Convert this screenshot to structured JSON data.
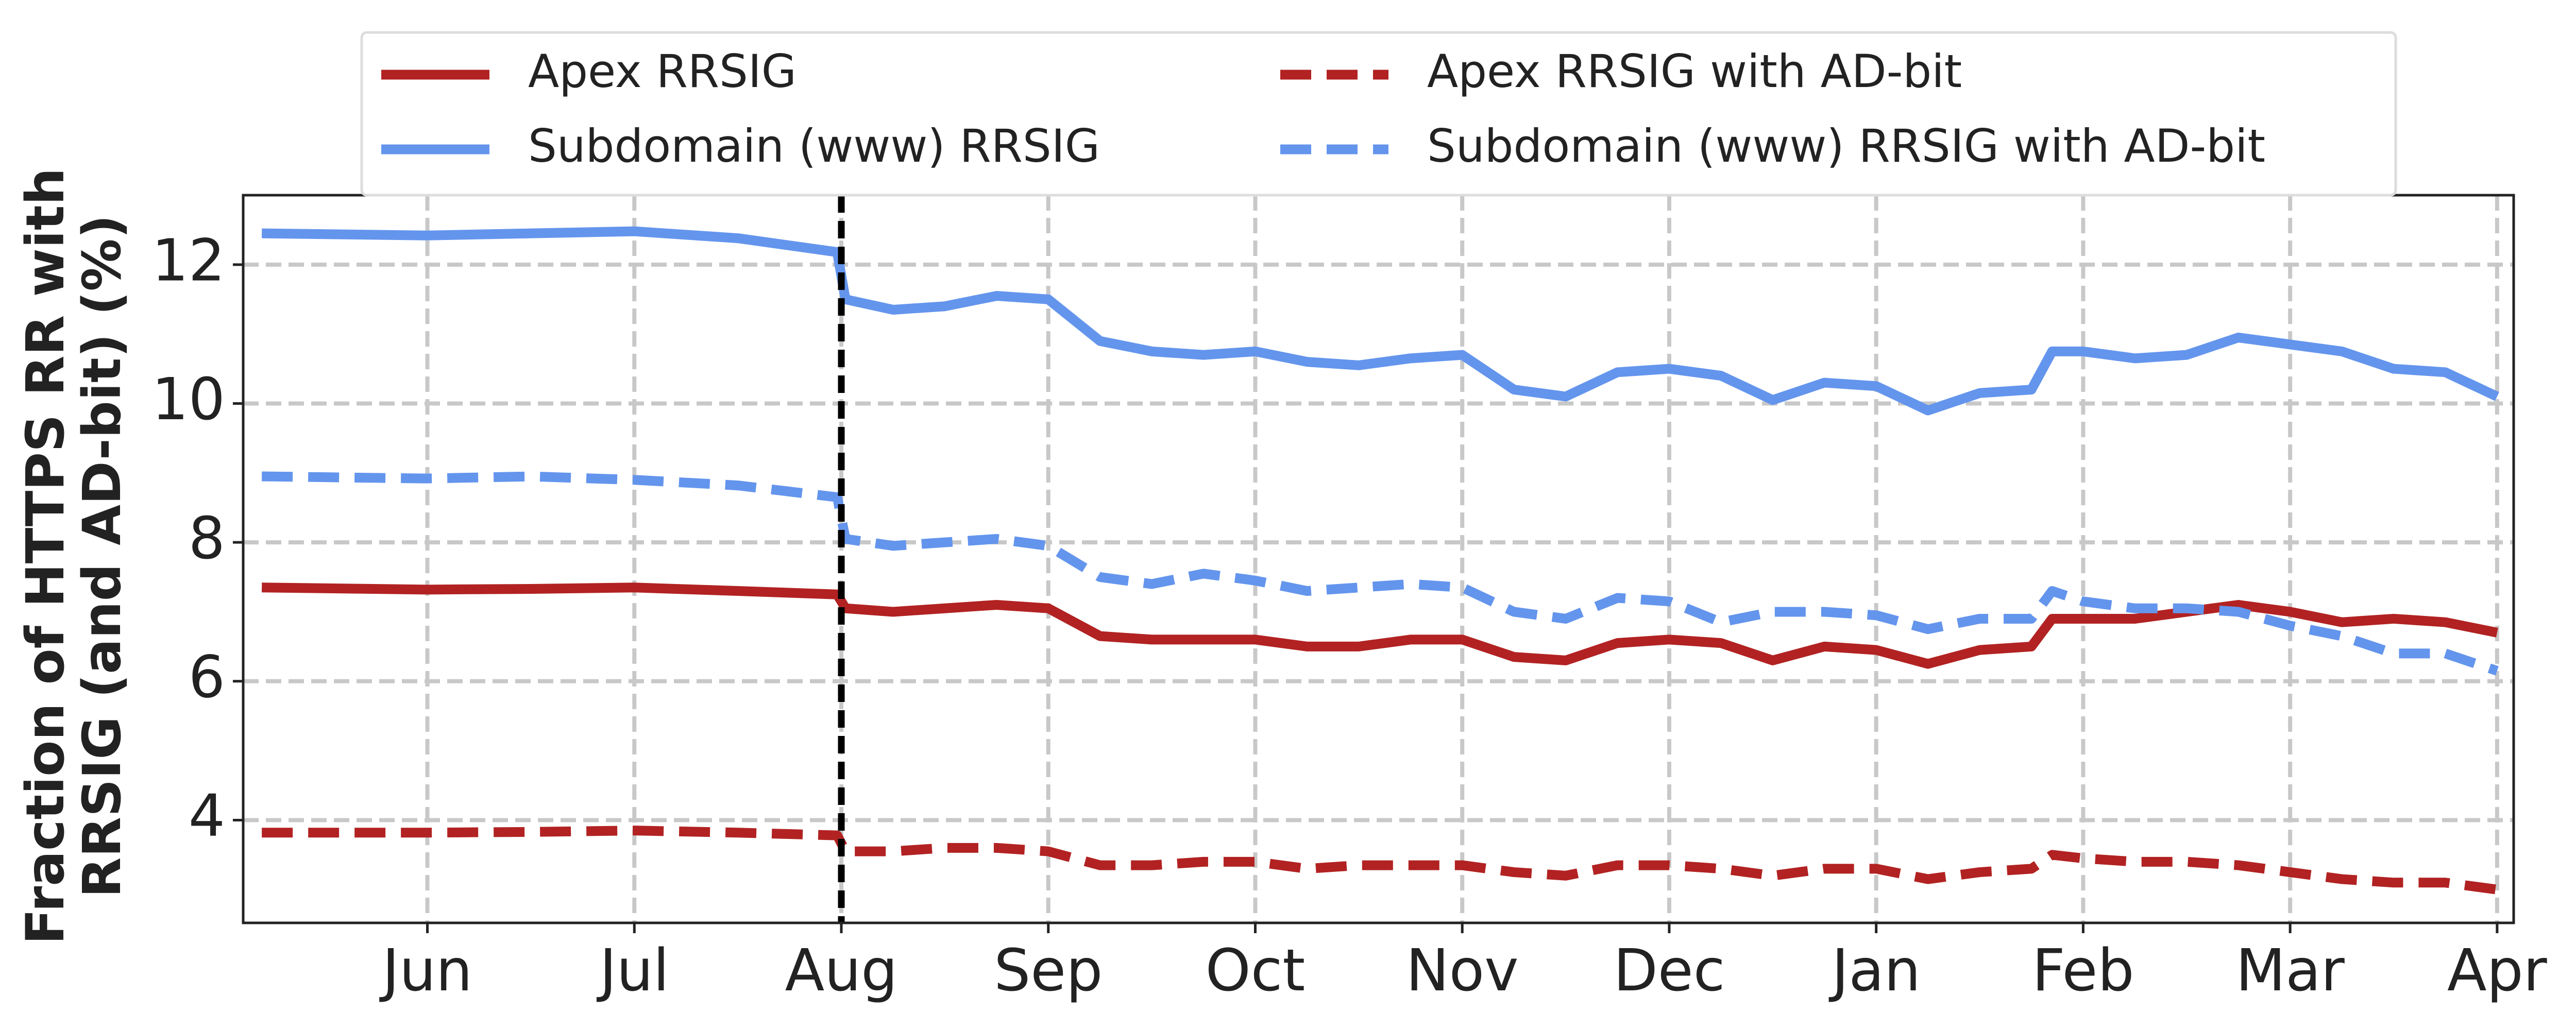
{
  "chart_data": {
    "type": "line",
    "ylabel": [
      "Fraction of HTTPS RR with",
      "RRSIG (and AD-bit) (%)"
    ],
    "x": [
      -0.8,
      0,
      0.5,
      1,
      1.5,
      1.98,
      2.02,
      2.25,
      2.5,
      2.75,
      3.0,
      3.25,
      3.5,
      3.75,
      4.0,
      4.25,
      4.5,
      4.75,
      5.0,
      5.25,
      5.5,
      5.75,
      6.0,
      6.25,
      6.5,
      6.75,
      7.0,
      7.25,
      7.5,
      7.75,
      7.85,
      8.0,
      8.25,
      8.5,
      8.75,
      9.0,
      9.25,
      9.5,
      9.75,
      10.0
    ],
    "series": [
      {
        "name": "Apex RRSIG",
        "color": "#b22222",
        "dashed": false,
        "values": [
          7.35,
          7.32,
          7.33,
          7.35,
          7.3,
          7.25,
          7.05,
          7.0,
          7.05,
          7.1,
          7.05,
          6.65,
          6.6,
          6.6,
          6.6,
          6.5,
          6.5,
          6.6,
          6.6,
          6.35,
          6.3,
          6.55,
          6.6,
          6.55,
          6.3,
          6.5,
          6.45,
          6.25,
          6.45,
          6.5,
          6.9,
          6.9,
          6.9,
          7.0,
          7.1,
          7.0,
          6.85,
          6.9,
          6.85,
          6.7
        ]
      },
      {
        "name": "Subdomain (www) RRSIG",
        "color": "#6495ed",
        "dashed": false,
        "values": [
          12.45,
          12.42,
          12.45,
          12.48,
          12.38,
          12.18,
          11.5,
          11.35,
          11.4,
          11.55,
          11.5,
          10.9,
          10.75,
          10.7,
          10.75,
          10.6,
          10.55,
          10.65,
          10.7,
          10.2,
          10.1,
          10.45,
          10.5,
          10.4,
          10.05,
          10.3,
          10.25,
          9.9,
          10.15,
          10.2,
          10.75,
          10.75,
          10.65,
          10.7,
          10.95,
          10.85,
          10.75,
          10.5,
          10.45,
          10.1
        ]
      },
      {
        "name": "Apex RRSIG with AD-bit",
        "color": "#b22222",
        "dashed": true,
        "values": [
          3.82,
          3.82,
          3.83,
          3.85,
          3.82,
          3.78,
          3.55,
          3.55,
          3.6,
          3.6,
          3.55,
          3.35,
          3.35,
          3.4,
          3.4,
          3.3,
          3.35,
          3.35,
          3.35,
          3.25,
          3.2,
          3.35,
          3.35,
          3.3,
          3.2,
          3.3,
          3.3,
          3.15,
          3.25,
          3.3,
          3.5,
          3.45,
          3.4,
          3.4,
          3.35,
          3.25,
          3.15,
          3.1,
          3.1,
          3.0
        ]
      },
      {
        "name": "Subdomain (www) RRSIG with AD-bit",
        "color": "#6495ed",
        "dashed": true,
        "values": [
          8.95,
          8.92,
          8.95,
          8.9,
          8.82,
          8.65,
          8.05,
          7.95,
          8.0,
          8.05,
          7.95,
          7.5,
          7.4,
          7.55,
          7.45,
          7.3,
          7.35,
          7.4,
          7.35,
          7.0,
          6.9,
          7.2,
          7.15,
          6.85,
          7.0,
          7.0,
          6.95,
          6.75,
          6.9,
          6.9,
          7.3,
          7.15,
          7.05,
          7.05,
          7.0,
          6.8,
          6.65,
          6.4,
          6.4,
          6.15
        ]
      }
    ],
    "xlim": [
      -0.89,
      10.08
    ],
    "xticks": [
      {
        "value": 0,
        "label": "Jun"
      },
      {
        "value": 1,
        "label": "Jul"
      },
      {
        "value": 2,
        "label": "Aug"
      },
      {
        "value": 3,
        "label": "Sep"
      },
      {
        "value": 4,
        "label": "Oct"
      },
      {
        "value": 5,
        "label": "Nov"
      },
      {
        "value": 6,
        "label": "Dec"
      },
      {
        "value": 7,
        "label": "Jan"
      },
      {
        "value": 8,
        "label": "Feb"
      },
      {
        "value": 9,
        "label": "Mar"
      },
      {
        "value": 10,
        "label": "Apr"
      }
    ],
    "ylim": [
      2.52,
      13.0
    ],
    "yticks": [
      4,
      6,
      8,
      10,
      12
    ],
    "grid": true,
    "vlines": [
      2
    ],
    "legend": "top",
    "legend_columns": 2
  }
}
